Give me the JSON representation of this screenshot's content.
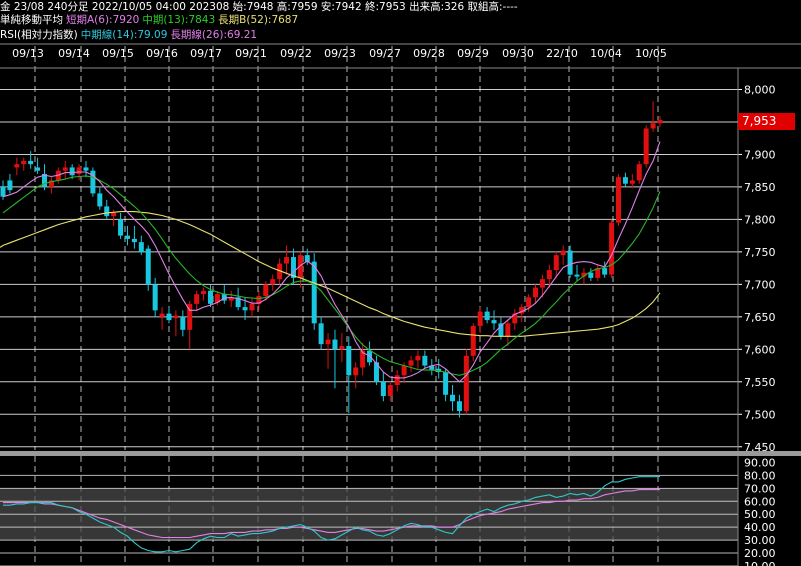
{
  "header": {
    "line1": "金 23/08 240分足 2022/10/05 04:00 202308 始:7948 高:7959 安:7942 終:7953 出来高:326 取組高:----",
    "ma_title": "単純移動平均",
    "ma_short": "短期A(6):7920",
    "ma_mid": "中期(13):7843",
    "ma_long": "長期B(52):7687",
    "rsi_title": "RSI(相対力指数)",
    "rsi_mid": "中期線(14):79.09",
    "rsi_long": "長期線(26):69.21"
  },
  "colors": {
    "up": "#e01010",
    "down": "#19c8e0",
    "ma6": "#e080e8",
    "ma13": "#28b428",
    "ma52": "#e8e070",
    "rsi14": "#30c8c8",
    "rsi26": "#e080e8",
    "grid": "#ffffff",
    "vgrid": "#b4b4b4",
    "band": "#4a4a4a",
    "price_tag": "#e00000"
  },
  "current_price": "7,953",
  "chart_data": [
    {
      "type": "candlestick",
      "x_labels": [
        "09/13",
        "09/14",
        "09/15",
        "09/16",
        "09/17",
        "09/21",
        "09/22",
        "09/23",
        "09/27",
        "09/28",
        "09/29",
        "09/30",
        "22/10",
        "10/04",
        "10/05"
      ],
      "y_ticks": [
        7450,
        7500,
        7550,
        7600,
        7650,
        7700,
        7750,
        7800,
        7850,
        7900,
        7950,
        8000
      ],
      "y_labels": [
        "7,450",
        "7,500",
        "7,550",
        "7,600",
        "7,650",
        "7,700",
        "7,750",
        "7,800",
        "7,850",
        "7,900",
        "7,950",
        "8,000"
      ],
      "ylim": [
        7445,
        8030
      ],
      "candles": [
        [
          7850,
          7860,
          7830,
          7835
        ],
        [
          7860,
          7870,
          7840,
          7845
        ],
        [
          7880,
          7895,
          7868,
          7885
        ],
        [
          7885,
          7895,
          7875,
          7890
        ],
        [
          7890,
          7905,
          7878,
          7885
        ],
        [
          7880,
          7895,
          7870,
          7875
        ],
        [
          7870,
          7885,
          7845,
          7850
        ],
        [
          7850,
          7865,
          7840,
          7860
        ],
        [
          7860,
          7880,
          7855,
          7875
        ],
        [
          7875,
          7890,
          7862,
          7880
        ],
        [
          7880,
          7885,
          7862,
          7868
        ],
        [
          7870,
          7885,
          7860,
          7880
        ],
        [
          7880,
          7890,
          7865,
          7875
        ],
        [
          7875,
          7880,
          7835,
          7840
        ],
        [
          7840,
          7850,
          7815,
          7820
        ],
        [
          7820,
          7830,
          7800,
          7805
        ],
        [
          7805,
          7815,
          7790,
          7810
        ],
        [
          7800,
          7810,
          7770,
          7775
        ],
        [
          7775,
          7790,
          7760,
          7770
        ],
        [
          7770,
          7790,
          7755,
          7765
        ],
        [
          7765,
          7775,
          7745,
          7750
        ],
        [
          7755,
          7760,
          7690,
          7700
        ],
        [
          7700,
          7710,
          7650,
          7660
        ],
        [
          7650,
          7665,
          7630,
          7655
        ],
        [
          7655,
          7665,
          7640,
          7645
        ],
        [
          7648,
          7660,
          7620,
          7652
        ],
        [
          7650,
          7660,
          7620,
          7630
        ],
        [
          7630,
          7675,
          7600,
          7670
        ],
        [
          7670,
          7690,
          7660,
          7685
        ],
        [
          7685,
          7695,
          7675,
          7690
        ],
        [
          7690,
          7700,
          7665,
          7670
        ],
        [
          7672,
          7690,
          7668,
          7685
        ],
        [
          7685,
          7700,
          7670,
          7675
        ],
        [
          7675,
          7690,
          7665,
          7680
        ],
        [
          7680,
          7695,
          7660,
          7665
        ],
        [
          7665,
          7680,
          7645,
          7660
        ],
        [
          7660,
          7680,
          7650,
          7670
        ],
        [
          7670,
          7690,
          7660,
          7682
        ],
        [
          7682,
          7705,
          7675,
          7700
        ],
        [
          7700,
          7715,
          7690,
          7708
        ],
        [
          7708,
          7740,
          7700,
          7732
        ],
        [
          7732,
          7760,
          7715,
          7742
        ],
        [
          7742,
          7755,
          7700,
          7710
        ],
        [
          7710,
          7750,
          7695,
          7745
        ],
        [
          7745,
          7755,
          7730,
          7735
        ],
        [
          7735,
          7748,
          7630,
          7640
        ],
        [
          7640,
          7650,
          7600,
          7608
        ],
        [
          7608,
          7625,
          7570,
          7615
        ],
        [
          7615,
          7630,
          7540,
          7600
        ],
        [
          7600,
          7625,
          7580,
          7605
        ],
        [
          7605,
          7620,
          7502,
          7560
        ],
        [
          7560,
          7580,
          7540,
          7572
        ],
        [
          7572,
          7610,
          7560,
          7598
        ],
        [
          7598,
          7612,
          7575,
          7580
        ],
        [
          7580,
          7590,
          7545,
          7550
        ],
        [
          7550,
          7565,
          7520,
          7528
        ],
        [
          7528,
          7550,
          7520,
          7545
        ],
        [
          7545,
          7568,
          7535,
          7560
        ],
        [
          7560,
          7580,
          7548,
          7575
        ],
        [
          7575,
          7590,
          7565,
          7583
        ],
        [
          7583,
          7598,
          7570,
          7590
        ],
        [
          7590,
          7598,
          7570,
          7575
        ],
        [
          7575,
          7585,
          7560,
          7568
        ],
        [
          7570,
          7585,
          7555,
          7565
        ],
        [
          7565,
          7570,
          7520,
          7530
        ],
        [
          7530,
          7545,
          7505,
          7520
        ],
        [
          7520,
          7530,
          7495,
          7505
        ],
        [
          7505,
          7600,
          7500,
          7590
        ],
        [
          7590,
          7640,
          7582,
          7636
        ],
        [
          7636,
          7665,
          7625,
          7658
        ],
        [
          7658,
          7665,
          7640,
          7645
        ],
        [
          7645,
          7660,
          7630,
          7640
        ],
        [
          7640,
          7650,
          7615,
          7620
        ],
        [
          7620,
          7645,
          7605,
          7640
        ],
        [
          7640,
          7662,
          7630,
          7655
        ],
        [
          7655,
          7670,
          7642,
          7665
        ],
        [
          7665,
          7685,
          7658,
          7680
        ],
        [
          7680,
          7700,
          7670,
          7695
        ],
        [
          7695,
          7715,
          7680,
          7708
        ],
        [
          7708,
          7730,
          7695,
          7722
        ],
        [
          7722,
          7750,
          7710,
          7745
        ],
        [
          7745,
          7760,
          7730,
          7752
        ],
        [
          7752,
          7760,
          7710,
          7715
        ],
        [
          7715,
          7730,
          7705,
          7712
        ],
        [
          7712,
          7725,
          7700,
          7718
        ],
        [
          7718,
          7725,
          7705,
          7710
        ],
        [
          7710,
          7730,
          7705,
          7725
        ],
        [
          7725,
          7735,
          7710,
          7715
        ],
        [
          7715,
          7800,
          7710,
          7795
        ],
        [
          7795,
          7870,
          7790,
          7865
        ],
        [
          7865,
          7872,
          7850,
          7855
        ],
        [
          7855,
          7870,
          7848,
          7860
        ],
        [
          7860,
          7890,
          7855,
          7885
        ],
        [
          7885,
          7945,
          7880,
          7940
        ],
        [
          7940,
          7982,
          7935,
          7948
        ],
        [
          7948,
          7959,
          7942,
          7953
        ]
      ],
      "ma6": [
        7835,
        7838,
        7842,
        7850,
        7858,
        7865,
        7868,
        7866,
        7868,
        7872,
        7872,
        7873,
        7873,
        7868,
        7858,
        7845,
        7835,
        7823,
        7811,
        7800,
        7790,
        7778,
        7760,
        7738,
        7716,
        7696,
        7677,
        7660,
        7660,
        7665,
        7668,
        7672,
        7679,
        7680,
        7678,
        7675,
        7671,
        7671,
        7677,
        7685,
        7696,
        7710,
        7719,
        7729,
        7736,
        7728,
        7713,
        7690,
        7669,
        7652,
        7635,
        7612,
        7595,
        7590,
        7578,
        7565,
        7557,
        7556,
        7556,
        7559,
        7564,
        7571,
        7575,
        7577,
        7570,
        7560,
        7550,
        7560,
        7576,
        7596,
        7610,
        7625,
        7636,
        7645,
        7654,
        7658,
        7663,
        7671,
        7683,
        7697,
        7712,
        7726,
        7731,
        7734,
        7735,
        7734,
        7730,
        7727,
        7745,
        7770,
        7793,
        7818,
        7845,
        7870,
        7890,
        7920
      ],
      "ma13": [
        7810,
        7818,
        7826,
        7834,
        7842,
        7850,
        7855,
        7858,
        7860,
        7862,
        7865,
        7866,
        7867,
        7865,
        7860,
        7854,
        7847,
        7838,
        7829,
        7820,
        7810,
        7798,
        7785,
        7770,
        7754,
        7740,
        7728,
        7716,
        7706,
        7698,
        7692,
        7688,
        7685,
        7684,
        7682,
        7680,
        7679,
        7678,
        7680,
        7684,
        7690,
        7697,
        7703,
        7705,
        7705,
        7700,
        7690,
        7676,
        7662,
        7648,
        7633,
        7619,
        7607,
        7599,
        7592,
        7586,
        7581,
        7578,
        7575,
        7572,
        7569,
        7568,
        7568,
        7567,
        7565,
        7562,
        7560,
        7563,
        7568,
        7573,
        7580,
        7590,
        7600,
        7608,
        7617,
        7625,
        7632,
        7640,
        7650,
        7662,
        7673,
        7685,
        7695,
        7705,
        7713,
        7720,
        7724,
        7726,
        7730,
        7738,
        7750,
        7763,
        7778,
        7797,
        7818,
        7843
      ],
      "ma52": [
        7760,
        7764,
        7768,
        7772,
        7776,
        7780,
        7784,
        7788,
        7792,
        7795,
        7798,
        7801,
        7804,
        7806,
        7808,
        7810,
        7811,
        7812,
        7812,
        7812,
        7811,
        7810,
        7808,
        7806,
        7803,
        7800,
        7796,
        7792,
        7787,
        7782,
        7777,
        7771,
        7765,
        7759,
        7753,
        7747,
        7741,
        7735,
        7730,
        7725,
        7721,
        7717,
        7713,
        7710,
        7706,
        7702,
        7698,
        7694,
        7689,
        7684,
        7679,
        7674,
        7669,
        7664,
        7660,
        7655,
        7651,
        7647,
        7643,
        7640,
        7637,
        7634,
        7632,
        7630,
        7628,
        7626,
        7624,
        7623,
        7622,
        7621,
        7621,
        7620,
        7620,
        7620,
        7620,
        7620,
        7621,
        7622,
        7623,
        7624,
        7625,
        7626,
        7627,
        7628,
        7629,
        7630,
        7631,
        7633,
        7635,
        7638,
        7643,
        7648,
        7655,
        7663,
        7673,
        7687
      ]
    },
    {
      "type": "line",
      "name": "RSI",
      "y_ticks": [
        10,
        20,
        30,
        40,
        50,
        60,
        70,
        80,
        90
      ],
      "y_labels": [
        "10.00",
        "20.00",
        "30.00",
        "40.00",
        "50.00",
        "60.00",
        "70.00",
        "80.00",
        "90.00"
      ],
      "ylim": [
        10,
        95
      ],
      "series": [
        {
          "name": "中期線(14)",
          "values": [
            57,
            57,
            58,
            58,
            59,
            59,
            59,
            59,
            57,
            56,
            55,
            52,
            50,
            47,
            44,
            42,
            40,
            36,
            33,
            28,
            24,
            22,
            21,
            21,
            22,
            21,
            22,
            23,
            28,
            31,
            33,
            32,
            32,
            35,
            33,
            34,
            35,
            35,
            36,
            37,
            39,
            40,
            41,
            42,
            40,
            37,
            32,
            30,
            31,
            34,
            37,
            40,
            38,
            37,
            34,
            33,
            35,
            38,
            41,
            43,
            42,
            40,
            40,
            38,
            36,
            35,
            41,
            47,
            50,
            52,
            54,
            52,
            55,
            57,
            58,
            60,
            61,
            63,
            64,
            65,
            63,
            64,
            66,
            65,
            66,
            64,
            67,
            72,
            75,
            75,
            77,
            78,
            79,
            79,
            79,
            79.09
          ]
        },
        {
          "name": "長期線(26)",
          "values": [
            59,
            59,
            59,
            59,
            59,
            59,
            58,
            58,
            57,
            56,
            55,
            53,
            51,
            49,
            47,
            46,
            44,
            42,
            40,
            38,
            36,
            34,
            33,
            32,
            32,
            32,
            32,
            32,
            33,
            34,
            35,
            35,
            35,
            36,
            36,
            36,
            37,
            37,
            38,
            38,
            39,
            39,
            40,
            40,
            39,
            38,
            37,
            36,
            36,
            37,
            38,
            39,
            39,
            38,
            37,
            37,
            38,
            39,
            40,
            41,
            41,
            41,
            41,
            40,
            40,
            40,
            42,
            45,
            47,
            49,
            50,
            51,
            52,
            54,
            55,
            56,
            57,
            58,
            59,
            59,
            60,
            60,
            61,
            61,
            62,
            62,
            63,
            65,
            66,
            67,
            68,
            68,
            69,
            69,
            69,
            69.21
          ]
        }
      ]
    }
  ]
}
